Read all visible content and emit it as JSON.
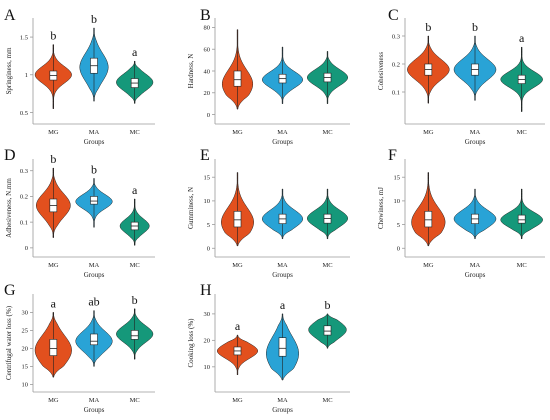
{
  "chart_data": [
    {
      "panel": "A",
      "type": "violin",
      "ylabel": "Springiness, mm",
      "xlabel": "Groups",
      "categories": [
        "MG",
        "MA",
        "MC"
      ],
      "yticks": [
        0.5,
        1.0,
        1.5
      ],
      "ylim": [
        0.4,
        1.7
      ],
      "violins": [
        {
          "min": 0.55,
          "q1": 0.93,
          "median": 0.99,
          "q3": 1.05,
          "max": 1.4,
          "peak": 1.0,
          "width": 0.45
        },
        {
          "min": 0.65,
          "q1": 1.02,
          "median": 1.12,
          "q3": 1.22,
          "max": 1.62,
          "peak": 1.1,
          "width": 0.35
        },
        {
          "min": 0.62,
          "q1": 0.83,
          "median": 0.89,
          "q3": 0.95,
          "max": 1.18,
          "peak": 0.9,
          "width": 0.45
        }
      ],
      "letters": [
        "b",
        "b",
        "a"
      ]
    },
    {
      "panel": "B",
      "type": "violin",
      "ylabel": "Hardness, N",
      "xlabel": "Groups",
      "categories": [
        "MG",
        "MA",
        "MC"
      ],
      "yticks": [
        0,
        20,
        40,
        60,
        80
      ],
      "ylim": [
        -5,
        85
      ],
      "violins": [
        {
          "min": 5,
          "q1": 26,
          "median": 32,
          "q3": 40,
          "max": 78,
          "peak": 28,
          "width": 0.34
        },
        {
          "min": 10,
          "q1": 29,
          "median": 33,
          "q3": 37,
          "max": 62,
          "peak": 32,
          "width": 0.45
        },
        {
          "min": 10,
          "q1": 30,
          "median": 34,
          "q3": 38,
          "max": 58,
          "peak": 34,
          "width": 0.45
        }
      ],
      "letters": []
    },
    {
      "panel": "C",
      "type": "violin",
      "ylabel": "Cohesiveness",
      "xlabel": "Groups",
      "categories": [
        "MG",
        "MA",
        "MC"
      ],
      "yticks": [
        0.1,
        0.2,
        0.3
      ],
      "ylim": [
        0.0,
        0.35
      ],
      "violins": [
        {
          "min": 0.06,
          "q1": 0.16,
          "median": 0.18,
          "q3": 0.2,
          "max": 0.3,
          "peak": 0.18,
          "width": 0.45
        },
        {
          "min": 0.07,
          "q1": 0.16,
          "median": 0.18,
          "q3": 0.2,
          "max": 0.3,
          "peak": 0.18,
          "width": 0.45
        },
        {
          "min": 0.03,
          "q1": 0.13,
          "median": 0.145,
          "q3": 0.16,
          "max": 0.26,
          "peak": 0.145,
          "width": 0.45
        }
      ],
      "letters": [
        "b",
        "b",
        "a"
      ]
    },
    {
      "panel": "D",
      "type": "violin",
      "ylabel": "Adhesiveness, N.mm",
      "xlabel": "Groups",
      "categories": [
        "MG",
        "MA",
        "MC"
      ],
      "yticks": [
        0.0,
        0.1,
        0.2,
        0.3
      ],
      "ylim": [
        -0.02,
        0.33
      ],
      "violins": [
        {
          "min": 0.04,
          "q1": 0.14,
          "median": 0.165,
          "q3": 0.19,
          "max": 0.31,
          "peak": 0.165,
          "width": 0.42
        },
        {
          "min": 0.08,
          "q1": 0.17,
          "median": 0.182,
          "q3": 0.2,
          "max": 0.27,
          "peak": 0.18,
          "width": 0.45
        },
        {
          "min": 0.01,
          "q1": 0.07,
          "median": 0.085,
          "q3": 0.1,
          "max": 0.19,
          "peak": 0.085,
          "width": 0.36
        }
      ],
      "letters": [
        "b",
        "b",
        "a"
      ]
    },
    {
      "panel": "E",
      "type": "violin",
      "ylabel": "Gumminess, N",
      "xlabel": "Groups",
      "categories": [
        "MG",
        "MA",
        "MC"
      ],
      "yticks": [
        0,
        5,
        10,
        15
      ],
      "ylim": [
        -1,
        18
      ],
      "violins": [
        {
          "min": 0.5,
          "q1": 4.5,
          "median": 6.0,
          "q3": 7.8,
          "max": 16.0,
          "peak": 5.5,
          "width": 0.36
        },
        {
          "min": 2.0,
          "q1": 5.2,
          "median": 6.2,
          "q3": 7.2,
          "max": 12.5,
          "peak": 6.2,
          "width": 0.45
        },
        {
          "min": 2.0,
          "q1": 5.3,
          "median": 6.3,
          "q3": 7.2,
          "max": 12.5,
          "peak": 6.3,
          "width": 0.45
        }
      ],
      "letters": []
    },
    {
      "panel": "F",
      "type": "violin",
      "ylabel": "Chewiness, mJ",
      "xlabel": "Groups",
      "categories": [
        "MG",
        "MA",
        "MC"
      ],
      "yticks": [
        0,
        5,
        10,
        15
      ],
      "ylim": [
        -1,
        18
      ],
      "violins": [
        {
          "min": 0.5,
          "q1": 4.5,
          "median": 6.0,
          "q3": 7.8,
          "max": 16.0,
          "peak": 5.5,
          "width": 0.36
        },
        {
          "min": 2.0,
          "q1": 5.2,
          "median": 6.2,
          "q3": 7.2,
          "max": 12.5,
          "peak": 6.2,
          "width": 0.45
        },
        {
          "min": 2.0,
          "q1": 5.3,
          "median": 6.0,
          "q3": 7.0,
          "max": 12.5,
          "peak": 6.0,
          "width": 0.45
        }
      ],
      "letters": []
    },
    {
      "panel": "G",
      "type": "violin",
      "ylabel": "Centrifugal water loss (%)",
      "xlabel": "Groups",
      "categories": [
        "MG",
        "MA",
        "MC"
      ],
      "yticks": [
        10,
        15,
        20,
        25,
        30
      ],
      "ylim": [
        9,
        34
      ],
      "violins": [
        {
          "min": 12.0,
          "q1": 18.0,
          "median": 20.0,
          "q3": 22.5,
          "max": 30.0,
          "peak": 19.5,
          "width": 0.45
        },
        {
          "min": 15.0,
          "q1": 21.0,
          "median": 22.0,
          "q3": 24.0,
          "max": 30.5,
          "peak": 22.0,
          "width": 0.45
        },
        {
          "min": 17.0,
          "q1": 22.5,
          "median": 23.5,
          "q3": 25.0,
          "max": 31.0,
          "peak": 24.0,
          "width": 0.45
        }
      ],
      "letters": [
        "a",
        "ab",
        "b"
      ]
    },
    {
      "panel": "H",
      "type": "violin",
      "ylabel": "Cooking loss (%)",
      "xlabel": "Groups",
      "categories": [
        "MG",
        "MA",
        "MC"
      ],
      "yticks": [
        10,
        20,
        30
      ],
      "ylim": [
        2,
        36
      ],
      "violins": [
        {
          "min": 7.0,
          "q1": 14.5,
          "median": 16.0,
          "q3": 17.5,
          "max": 22.0,
          "peak": 16.0,
          "width": 0.45
        },
        {
          "min": 5.0,
          "q1": 14.0,
          "median": 17.0,
          "q3": 21.0,
          "max": 30.0,
          "peak": 15.0,
          "width": 0.36
        },
        {
          "min": 17.0,
          "q1": 22.0,
          "median": 23.5,
          "q3": 25.5,
          "max": 30.0,
          "peak": 24.0,
          "width": 0.42
        }
      ],
      "letters": [
        "a",
        "a",
        "b"
      ]
    }
  ],
  "colors": {
    "MG": "#e2501e",
    "MA": "#29a3d6",
    "MC": "#15987a",
    "outline": "#222222",
    "box": "#ffffff",
    "axis": "#9a9a9a"
  }
}
